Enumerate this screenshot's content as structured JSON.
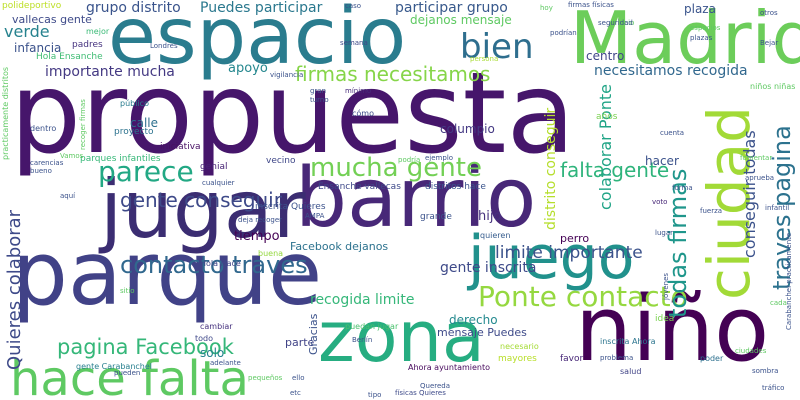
{
  "cloud": {
    "words": [
      {
        "text": "propuesta",
        "color": "#46166b"
      },
      {
        "text": "espacio",
        "color": "#2a7c8e"
      },
      {
        "text": "Madrid",
        "color": "#6ccd5a"
      },
      {
        "text": "barrio",
        "color": "#482878"
      },
      {
        "text": "jugar",
        "color": "#3b2d72"
      },
      {
        "text": "parque",
        "color": "#414287"
      },
      {
        "text": "niño",
        "color": "#440154"
      },
      {
        "text": "zona",
        "color": "#26ad81"
      },
      {
        "text": "juego",
        "color": "#21918c"
      },
      {
        "text": "ciudad",
        "color": "#a2da37"
      },
      {
        "text": "hace falta",
        "color": "#5ec962"
      },
      {
        "text": "Ponte contacto",
        "color": "#95d840"
      },
      {
        "text": "contacto traves",
        "color": "#31688e"
      },
      {
        "text": "mucha gente",
        "color": "#73d055"
      },
      {
        "text": "parece",
        "color": "#22a884"
      },
      {
        "text": "bien",
        "color": "#2e6e8e"
      },
      {
        "text": "firmas necesitamos",
        "color": "#86d549"
      },
      {
        "text": "gente conseguir",
        "color": "#3e4a89"
      },
      {
        "text": "traves pagina",
        "color": "#2c728e"
      },
      {
        "text": "conseguir todas",
        "color": "#3b528b"
      },
      {
        "text": "todas firmas",
        "color": "#1f968b"
      },
      {
        "text": "pagina Facebook",
        "color": "#35b779"
      },
      {
        "text": "falta gente",
        "color": "#2fb47c"
      },
      {
        "text": "necesitamos recogida",
        "color": "#31688e"
      },
      {
        "text": "limite importante",
        "color": "#3b528b"
      },
      {
        "text": "importante mucha",
        "color": "#443983"
      },
      {
        "text": "Quieres colaborar",
        "color": "#3e4a89"
      },
      {
        "text": "colaborar Ponte",
        "color": "#20a486"
      },
      {
        "text": "distrito conseguir",
        "color": "#b5de2b"
      },
      {
        "text": "recogida limite",
        "color": "#35b779"
      },
      {
        "text": "gente inscrita",
        "color": "#3e4a89"
      },
      {
        "text": "grupo distrito",
        "color": "#3a548c"
      },
      {
        "text": "Puedes participar",
        "color": "#2a788e"
      },
      {
        "text": "participar grupo",
        "color": "#38598c"
      },
      {
        "text": "dejanos mensaje",
        "color": "#5ec962"
      },
      {
        "text": "verde",
        "color": "#26828e"
      },
      {
        "text": "infancia",
        "color": "#3b528b"
      },
      {
        "text": "centro",
        "color": "#404688"
      },
      {
        "text": "plaza",
        "color": "#3a548c"
      },
      {
        "text": "apoyo",
        "color": "#24878e"
      },
      {
        "text": "calle",
        "color": "#2d708e"
      },
      {
        "text": "tiempo",
        "color": "#440154"
      },
      {
        "text": "hijo",
        "color": "#46327e"
      },
      {
        "text": "columpio",
        "color": "#443983"
      },
      {
        "text": "Facebook dejanos",
        "color": "#2c728e"
      },
      {
        "text": "hacer",
        "color": "#3b528b"
      },
      {
        "text": "derecho",
        "color": "#23898e"
      },
      {
        "text": "perro",
        "color": "#440154"
      },
      {
        "text": "mensaje Puedes",
        "color": "#3e4a89"
      },
      {
        "text": "parte",
        "color": "#414487"
      },
      {
        "text": "solo",
        "color": "#25838e"
      },
      {
        "text": "Gracias",
        "color": "#3b528b"
      },
      {
        "text": "vallecas gente",
        "color": "#3e4a89"
      },
      {
        "text": "polideportivo",
        "color": "#bddf26"
      },
      {
        "text": "Hola Ensanche",
        "color": "#3fbc73"
      },
      {
        "text": "padres",
        "color": "#46337f"
      },
      {
        "text": "mejor",
        "color": "#3aba76"
      },
      {
        "text": "iniciativa",
        "color": "#471063"
      },
      {
        "text": "parques infantiles",
        "color": "#37b878"
      },
      {
        "text": "genial",
        "color": "#482475"
      },
      {
        "text": "vecino",
        "color": "#3f4788"
      },
      {
        "text": "proyecto",
        "color": "#2c728e"
      },
      {
        "text": "público",
        "color": "#287c8e"
      },
      {
        "text": "Ensanche vallecas",
        "color": "#3e4989"
      },
      {
        "text": "distritos hace",
        "color": "#3a548c"
      },
      {
        "text": "inscrita Quieres",
        "color": "#3b528b"
      },
      {
        "text": "mayores",
        "color": "#b8de29"
      },
      {
        "text": "inscrita Ahora",
        "color": "#2b748e"
      },
      {
        "text": "favor",
        "color": "#482878"
      },
      {
        "text": "idea",
        "color": "#7ad151"
      },
      {
        "text": "poder",
        "color": "#2d708e"
      },
      {
        "text": "salud",
        "color": "#414487"
      },
      {
        "text": "grande",
        "color": "#3b528b"
      },
      {
        "text": "quieren",
        "color": "#365c8d"
      },
      {
        "text": "Hola Hace",
        "color": "#404688"
      },
      {
        "text": "buena",
        "color": "#95d840"
      },
      {
        "text": "cambiar",
        "color": "#46327e"
      },
      {
        "text": "todo",
        "color": "#3f4889"
      },
      {
        "text": "gente Carabanchel",
        "color": "#277f8e"
      },
      {
        "text": "Ahora ayuntamiento",
        "color": "#46085c"
      },
      {
        "text": "necesario",
        "color": "#a5db36"
      },
      {
        "text": "puedan jugar",
        "color": "#4ac16d"
      },
      {
        "text": "Berlín",
        "color": "#3b528b"
      },
      {
        "text": "cómo",
        "color": "#3e4c8a"
      },
      {
        "text": "dentro",
        "color": "#3b528b"
      },
      {
        "text": "mínimo",
        "color": "#472c7a"
      },
      {
        "text": "caso",
        "color": "#3b528b"
      },
      {
        "text": "persona",
        "color": "#a8db34"
      },
      {
        "text": "semana",
        "color": "#3e4a89"
      },
      {
        "text": "podrían",
        "color": "#3b528b"
      },
      {
        "text": "cuenta",
        "color": "#3b528b"
      },
      {
        "text": "otros",
        "color": "#3b528b"
      },
      {
        "text": "firmas físicas",
        "color": "#3b528b"
      },
      {
        "text": "espacios",
        "color": "#5ec962"
      },
      {
        "text": "años",
        "color": "#7ad151"
      },
      {
        "text": "niños niñas",
        "color": "#5ec962"
      },
      {
        "text": "fuerza",
        "color": "#3b528b"
      },
      {
        "text": "voto",
        "color": "#482878"
      },
      {
        "text": "jóvenes",
        "color": "#3b528b"
      },
      {
        "text": "practicamente distritos",
        "color": "#5ec962"
      },
      {
        "text": "Carabanchel practicamente",
        "color": "#3b528b"
      },
      {
        "text": "tráfico",
        "color": "#3b528b"
      },
      {
        "text": "vigilancia",
        "color": "#3b528b"
      },
      {
        "text": "físicas Quieres",
        "color": "#3e4a89"
      },
      {
        "text": "cualquier",
        "color": "#3b528b"
      },
      {
        "text": "Vamos",
        "color": "#5ec962"
      },
      {
        "text": "aquí",
        "color": "#3b528b"
      },
      {
        "text": "sitio",
        "color": "#5ec962"
      },
      {
        "text": "ejemplo",
        "color": "#3b528b"
      },
      {
        "text": "pueden",
        "color": "#3b528b"
      },
      {
        "text": "carencias",
        "color": "#3b528b"
      },
      {
        "text": "deja recoger",
        "color": "#3b528b"
      },
      {
        "text": "recoger firmas",
        "color": "#5ec962"
      },
      {
        "text": "Quereda",
        "color": "#3b528b"
      },
      {
        "text": "pequeños",
        "color": "#5ec962"
      },
      {
        "text": "problema",
        "color": "#3b528b"
      },
      {
        "text": "ciudades",
        "color": "#5ec962"
      },
      {
        "text": "AMPA",
        "color": "#3b528b"
      },
      {
        "text": "Londres",
        "color": "#3b528b"
      },
      {
        "text": "podría",
        "color": "#5ec962"
      },
      {
        "text": "gran",
        "color": "#3b528b"
      },
      {
        "text": "turno",
        "color": "#3b528b"
      },
      {
        "text": "bueno",
        "color": "#3b528b"
      },
      {
        "text": "hoy",
        "color": "#5ec962"
      },
      {
        "text": "forma",
        "color": "#3b528b"
      },
      {
        "text": "Bejar",
        "color": "#3b528b"
      },
      {
        "text": "plazas",
        "color": "#3b528b"
      },
      {
        "text": "infantil",
        "color": "#3b528b"
      },
      {
        "text": "ocio",
        "color": "#5ec962"
      },
      {
        "text": "tipo",
        "color": "#3b528b"
      },
      {
        "text": "sombra",
        "color": "#3b528b"
      },
      {
        "text": "seguridad",
        "color": "#3b528b"
      },
      {
        "text": "fomentar",
        "color": "#5ec962"
      },
      {
        "text": "aprueba",
        "color": "#3b528b"
      },
      {
        "text": "lugar",
        "color": "#3b528b"
      },
      {
        "text": "ello",
        "color": "#3b528b"
      },
      {
        "text": "etc",
        "color": "#3b528b"
      },
      {
        "text": "adelante",
        "color": "#3b528b"
      },
      {
        "text": "cada",
        "color": "#5ec962"
      }
    ]
  }
}
